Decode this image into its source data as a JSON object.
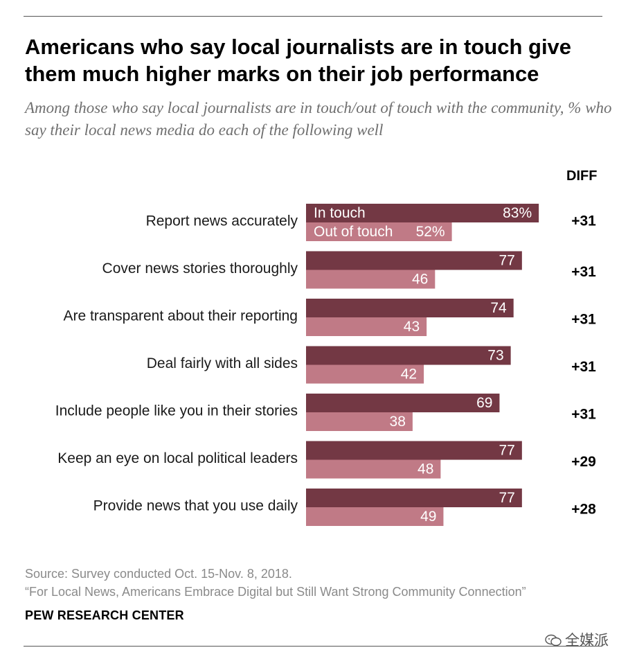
{
  "title": "Americans who say local journalists are in touch give them much higher marks on their job performance",
  "subtitle": "Among those who say local journalists are in touch/out of touch with the community, % who say their local news media do each of the following well",
  "chart_data": {
    "type": "bar",
    "orientation": "horizontal",
    "categories": [
      "Report news accurately",
      "Cover news stories thoroughly",
      "Are transparent about their reporting",
      "Deal fairly with all sides",
      "Include people like you in their stories",
      "Keep an eye on local political leaders",
      "Provide news that you use daily"
    ],
    "series": [
      {
        "name": "In touch",
        "color": "#733844",
        "values": [
          83,
          77,
          74,
          73,
          69,
          77,
          77
        ],
        "labels": [
          "83%",
          "77",
          "74",
          "73",
          "69",
          "77",
          "77"
        ]
      },
      {
        "name": "Out of touch",
        "color": "#c07a86",
        "values": [
          52,
          46,
          43,
          42,
          38,
          48,
          49
        ],
        "labels": [
          "52%",
          "46",
          "43",
          "42",
          "38",
          "48",
          "49"
        ]
      }
    ],
    "diff_header": "DIFF",
    "diff": [
      "+31",
      "+31",
      "+31",
      "+31",
      "+31",
      "+29",
      "+28"
    ],
    "xlim": [
      0,
      100
    ]
  },
  "footer": {
    "source": "Source: Survey conducted Oct. 15-Nov. 8, 2018.",
    "report": "“For Local News, Americans Embrace Digital but Still Want Strong Community Connection”",
    "org": "PEW RESEARCH CENTER"
  },
  "watermark": "全媒派"
}
